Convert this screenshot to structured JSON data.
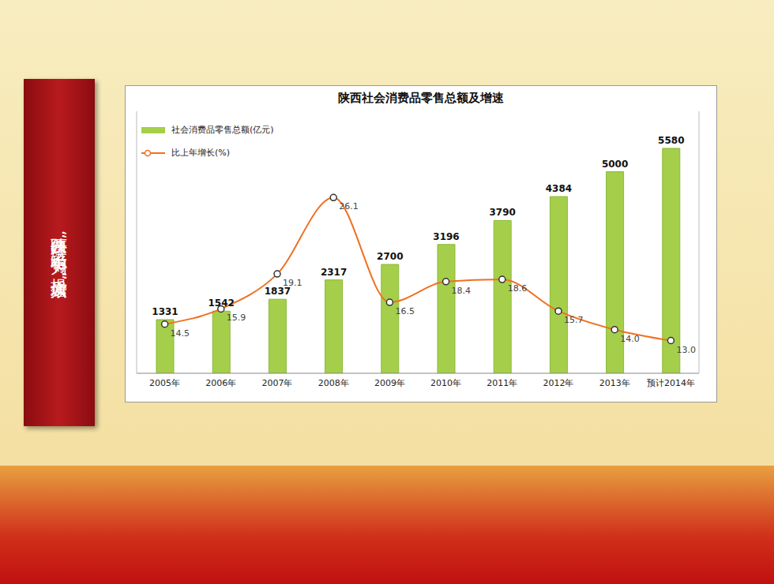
{
  "banner": "陕西经济“稳中有为、提质增效”",
  "chart_data": {
    "type": "bar",
    "title": "陕西社会消费品零售总额及增速",
    "categories": [
      "2005年",
      "2006年",
      "2007年",
      "2008年",
      "2009年",
      "2010年",
      "2011年",
      "2012年",
      "2013年",
      "预计2014年"
    ],
    "series": [
      {
        "name": "社会消费品零售总额(亿元)",
        "type": "bar",
        "color": "#a5cf4a",
        "values": [
          1331,
          1542,
          1837,
          2317,
          2700,
          3196,
          3790,
          4384,
          5000,
          5580
        ],
        "data_labels": true
      },
      {
        "name": "比上年增长(%)",
        "type": "line",
        "axis": "y2",
        "color": "#f07020",
        "marker": "circle",
        "values": [
          14.5,
          15.9,
          19.1,
          26.1,
          16.5,
          18.4,
          18.6,
          15.7,
          14.0,
          13.0
        ],
        "value_labels": [
          "14.5",
          "15.9",
          "19.1",
          "26.1",
          "16.5",
          "18.4",
          "18.6",
          "15.7",
          "14.0",
          "13.0"
        ],
        "data_labels": true
      }
    ],
    "ylim": [
      0,
      6500
    ],
    "y2lim": [
      10,
      34
    ],
    "tick_labels": "x",
    "legend": "upper left",
    "grid": false
  }
}
